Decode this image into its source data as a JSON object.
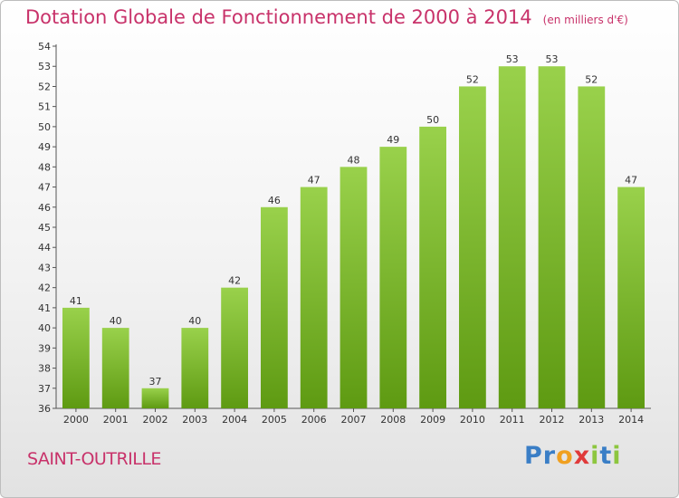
{
  "title": "Dotation Globale de Fonctionnement de 2000 à 2014",
  "unit": "(en milliers d'€)",
  "commune": "SAINT-OUTRILLE",
  "logo": {
    "letters": [
      "P",
      "r",
      "o",
      "x",
      "i",
      "t",
      "i"
    ],
    "colors": [
      "#3a7ec6",
      "#3a7ec6",
      "#f0a020",
      "#e03a3a",
      "#8dc63f",
      "#3a7ec6",
      "#8dc63f"
    ]
  },
  "colors": {
    "bar_top": "#99d14b",
    "bar_bottom": "#5e9a12",
    "title": "#c8326a"
  },
  "chart_data": {
    "type": "bar",
    "categories": [
      "2000",
      "2001",
      "2002",
      "2003",
      "2004",
      "2005",
      "2006",
      "2007",
      "2008",
      "2009",
      "2010",
      "2011",
      "2012",
      "2013",
      "2014"
    ],
    "values": [
      41,
      40,
      37,
      40,
      42,
      46,
      47,
      48,
      49,
      50,
      52,
      53,
      53,
      52,
      47
    ],
    "ylim": [
      36,
      54
    ],
    "yticks": [
      36,
      37,
      38,
      39,
      40,
      41,
      42,
      43,
      44,
      45,
      46,
      47,
      48,
      49,
      50,
      51,
      52,
      53,
      54
    ],
    "grid": false,
    "legend": "none"
  }
}
